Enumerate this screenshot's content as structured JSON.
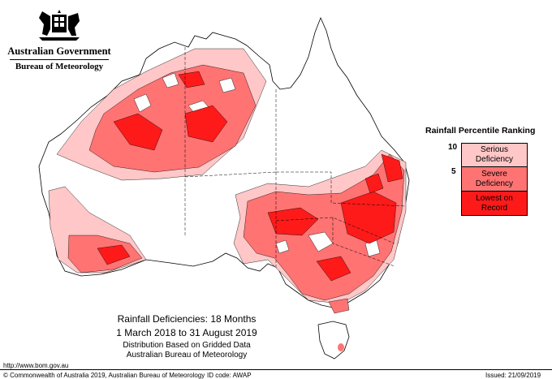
{
  "branding": {
    "government": "Australian Government",
    "agency": "Bureau of Meteorology"
  },
  "legend": {
    "title": "Rainfall Percentile Ranking",
    "tick_upper": "10",
    "tick_lower": "5",
    "items": [
      {
        "label_line1": "Serious",
        "label_line2": "Deficiency",
        "color": "#ffc7c7"
      },
      {
        "label_line1": "Severe",
        "label_line2": "Deficiency",
        "color": "#ff7373"
      },
      {
        "label_line1": "Lowest on",
        "label_line2": "Record",
        "color": "#ff1a1a"
      }
    ]
  },
  "caption": {
    "title": "Rainfall Deficiencies: 18 Months",
    "period": "1 March 2018 to 31 August 2019",
    "line1": "Distribution Based on Gridded Data",
    "line2": "Australian Bureau of Meteorology"
  },
  "footer": {
    "url": "http://www.bom.gov.au",
    "copyright": "© Commonwealth of Australia 2019, Australian Bureau of Meteorology",
    "id_code": "ID code: AWAP",
    "issued": "Issued: 21/09/2019"
  },
  "colors": {
    "serious": "#ffc7c7",
    "severe": "#ff7373",
    "lowest": "#ff1a1a",
    "outline": "#000000"
  }
}
